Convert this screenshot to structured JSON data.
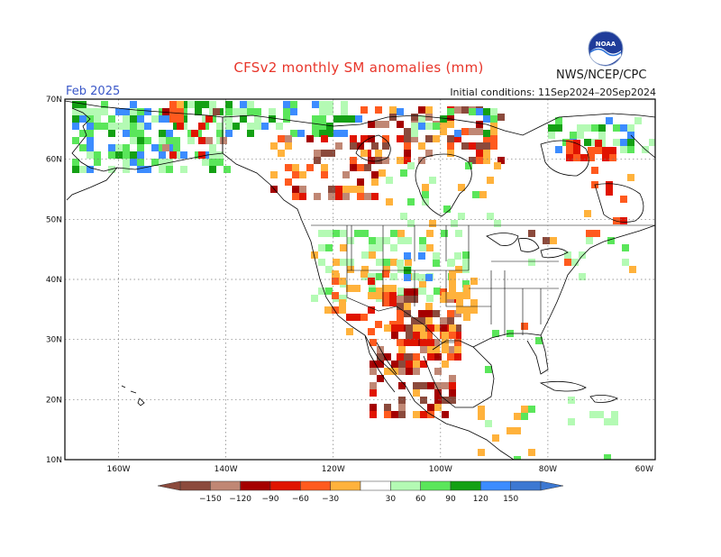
{
  "title": "CFSv2 monthly SM anomalies (mm)",
  "organization": "NWS/NCEP/CPC",
  "valid_month": "Feb 2025",
  "initial_conditions": "Initial conditions: 11Sep2024–20Sep2024",
  "logo_icon": "noaa-logo-icon",
  "axes": {
    "lat_labels": [
      "70N",
      "60N",
      "50N",
      "40N",
      "30N",
      "20N",
      "10N"
    ],
    "lat_values": [
      70,
      60,
      50,
      40,
      30,
      20,
      10
    ],
    "lon_labels": [
      "160W",
      "140W",
      "120W",
      "100W",
      "80W",
      "60W"
    ],
    "lon_values": [
      -160,
      -140,
      -120,
      -100,
      -80,
      -60
    ],
    "lon_range": [
      -170,
      -60
    ],
    "lat_range": [
      10,
      70
    ]
  },
  "colorbar": {
    "labels": [
      "−150",
      "−120",
      "−90",
      "−60",
      "−30",
      "30",
      "60",
      "90",
      "120",
      "150"
    ],
    "colors": [
      "#8b4a3c",
      "#c08774",
      "#a50000",
      "#e01400",
      "#ff5a1e",
      "#ffb23c",
      "#ffffff",
      "#b4fab4",
      "#5ae65a",
      "#14a014",
      "#3c8cff",
      "#3c78d2"
    ]
  },
  "colors": {
    "dry_strong": "#8b4a3c",
    "dry_brown_light": "#c08774",
    "dry_dark_red": "#a50000",
    "dry_red": "#e01400",
    "dry_orange_red": "#ff5a1e",
    "dry_orange": "#ffb23c",
    "wet_light": "#b4fab4",
    "wet_green": "#5ae65a",
    "wet_dark": "#14a014",
    "wet_blue": "#3c8cff"
  }
}
